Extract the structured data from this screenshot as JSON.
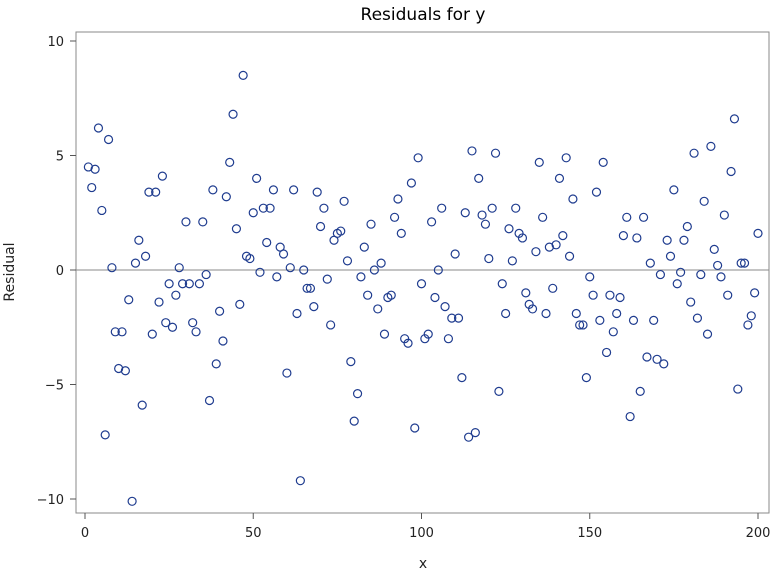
{
  "chart_data": {
    "type": "scatter",
    "title": "Residuals for y",
    "xlabel": "x",
    "ylabel": "Residual",
    "xlim": [
      0,
      200
    ],
    "ylim": [
      -10,
      10
    ],
    "xticks": [
      "0",
      "50",
      "100",
      "150",
      "200"
    ],
    "yticks": [
      "−10",
      "−5",
      "0",
      "5",
      "10"
    ],
    "grid": false,
    "reference_line_y": 0,
    "marker": "open-circle",
    "colors": {
      "marker": "#1f3c8f",
      "reference": "#8a8a8a",
      "frame": "#8a8a8a"
    },
    "x": [
      1,
      2,
      3,
      4,
      5,
      6,
      7,
      8,
      9,
      10,
      11,
      12,
      13,
      14,
      15,
      16,
      17,
      18,
      19,
      20,
      21,
      22,
      23,
      24,
      25,
      26,
      27,
      28,
      29,
      30,
      31,
      32,
      33,
      34,
      35,
      36,
      37,
      38,
      39,
      40,
      41,
      42,
      43,
      44,
      45,
      46,
      47,
      48,
      49,
      50,
      51,
      52,
      53,
      54,
      55,
      56,
      57,
      58,
      59,
      60,
      61,
      62,
      63,
      64,
      65,
      66,
      67,
      68,
      69,
      70,
      71,
      72,
      73,
      74,
      75,
      76,
      77,
      78,
      79,
      80,
      81,
      82,
      83,
      84,
      85,
      86,
      87,
      88,
      89,
      90,
      91,
      92,
      93,
      94,
      95,
      96,
      97,
      98,
      99,
      100,
      101,
      102,
      103,
      104,
      105,
      106,
      107,
      108,
      109,
      110,
      111,
      112,
      113,
      114,
      115,
      116,
      117,
      118,
      119,
      120,
      121,
      122,
      123,
      124,
      125,
      126,
      127,
      128,
      129,
      130,
      131,
      132,
      133,
      134,
      135,
      136,
      137,
      138,
      139,
      140,
      141,
      142,
      143,
      144,
      145,
      146,
      147,
      148,
      149,
      150,
      151,
      152,
      153,
      154,
      155,
      156,
      157,
      158,
      159,
      160,
      161,
      162,
      163,
      164,
      165,
      166,
      167,
      168,
      169,
      170,
      171,
      172,
      173,
      174,
      175,
      176,
      177,
      178,
      179,
      180,
      181,
      182,
      183,
      184,
      185,
      186,
      187,
      188,
      189,
      190,
      191,
      192,
      193,
      194,
      195,
      196,
      197,
      198,
      199,
      200
    ],
    "y": [
      4.5,
      3.6,
      4.4,
      6.2,
      2.6,
      -7.2,
      5.7,
      0.1,
      -2.7,
      -4.3,
      -2.7,
      -4.4,
      -1.3,
      -10.1,
      0.3,
      1.3,
      -5.9,
      0.6,
      3.4,
      -2.8,
      3.4,
      -1.4,
      4.1,
      -2.3,
      -0.6,
      -2.5,
      -1.1,
      0.1,
      -0.6,
      2.1,
      -0.6,
      -2.3,
      -2.7,
      -0.6,
      2.1,
      -0.2,
      -5.7,
      3.5,
      -4.1,
      -1.8,
      -3.1,
      3.2,
      4.7,
      6.8,
      1.8,
      -1.5,
      8.5,
      0.6,
      0.5,
      2.5,
      4.0,
      -0.1,
      2.7,
      1.2,
      2.7,
      3.5,
      -0.3,
      1.0,
      0.7,
      -4.5,
      0.1,
      3.5,
      -1.9,
      -9.2,
      0.0,
      -0.8,
      -0.8,
      -1.6,
      3.4,
      1.9,
      2.7,
      -0.4,
      -2.4,
      1.3,
      1.6,
      1.7,
      3.0,
      0.4,
      -4.0,
      -6.6,
      -5.4,
      -0.3,
      1.0,
      -1.1,
      2.0,
      0.0,
      -1.7,
      0.3,
      -2.8,
      -1.2,
      -1.1,
      2.3,
      3.1,
      1.6,
      -3.0,
      -3.2,
      3.8,
      -6.9,
      4.9,
      -0.6,
      -3.0,
      -2.8,
      2.1,
      -1.2,
      0.0,
      2.7,
      -1.6,
      -3.0,
      -2.1,
      0.7,
      -2.1,
      -4.7,
      2.5,
      -7.3,
      5.2,
      -7.1,
      4.0,
      2.4,
      2.0,
      0.5,
      2.7,
      5.1,
      -5.3,
      -0.6,
      -1.9,
      1.8,
      0.4,
      2.7,
      1.6,
      1.4,
      -1.0,
      -1.5,
      -1.7,
      0.8,
      4.7,
      2.3,
      -1.9,
      1.0,
      -0.8,
      1.1,
      4.0,
      1.5,
      4.9,
      0.6,
      3.1,
      -1.9,
      -2.4,
      -2.4,
      -4.7,
      -0.3,
      -1.1,
      3.4,
      -2.2,
      4.7,
      -3.6,
      -1.1,
      -2.7,
      -1.9,
      -1.2,
      1.5,
      2.3,
      -6.4,
      -2.2,
      1.4,
      -5.3,
      2.3,
      -3.8,
      0.3,
      -2.2,
      -3.9,
      -0.2,
      -4.1,
      1.3,
      0.6,
      3.5,
      -0.6,
      -0.1,
      1.3,
      1.9,
      -1.4,
      5.1,
      -2.1,
      -0.2,
      3.0,
      -2.8,
      5.4,
      0.9,
      0.2,
      -0.3,
      2.4,
      -1.1,
      4.3,
      6.6,
      -5.2,
      0.3,
      0.3,
      -2.4,
      -2.0,
      -1.0,
      1.6
    ]
  }
}
